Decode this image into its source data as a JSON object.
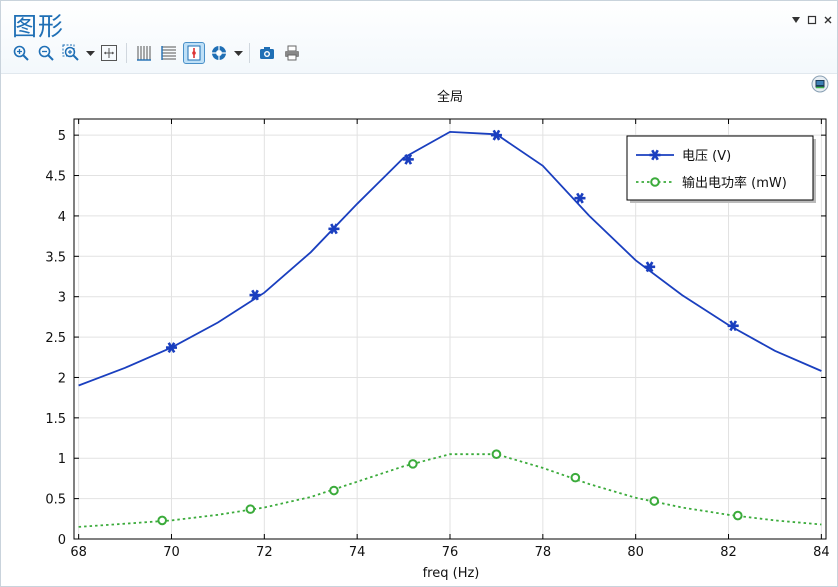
{
  "window": {
    "title": "图形"
  },
  "toolbar": {
    "buttons": [
      {
        "name": "zoom-in-icon"
      },
      {
        "name": "zoom-out-icon"
      },
      {
        "name": "zoom-box-icon"
      },
      {
        "name": "zoom-extents-icon"
      },
      {
        "name": "x-axis-icon"
      },
      {
        "name": "y-axis-icon"
      },
      {
        "name": "point-probe-icon",
        "active": true
      },
      {
        "name": "render-options-icon"
      },
      {
        "name": "camera-icon"
      },
      {
        "name": "print-icon"
      }
    ]
  },
  "colors": {
    "series1": "#1a3fbf",
    "series2": "#3bab3b",
    "accent": "#1f6fb5"
  },
  "chart_data": {
    "type": "line",
    "title": "全局",
    "xlabel": "freq (Hz)",
    "ylabel": "",
    "xlim": [
      67.9,
      84.1
    ],
    "ylim": [
      0,
      5.2
    ],
    "xticks": [
      "68",
      "70",
      "72",
      "74",
      "76",
      "78",
      "80",
      "82",
      "84"
    ],
    "yticks": [
      "0",
      "0.5",
      "1",
      "1.5",
      "2",
      "2.5",
      "3",
      "3.5",
      "4",
      "4.5",
      "5"
    ],
    "grid": true,
    "legend_position": "top-right",
    "series": [
      {
        "name": "电压 (V)",
        "style": "solid",
        "marker": "asterisk",
        "x": [
          68,
          69,
          70,
          71,
          72,
          73,
          74,
          75,
          76,
          77,
          78,
          79,
          80,
          81,
          82,
          83,
          84
        ],
        "y": [
          1.9,
          2.12,
          2.37,
          2.68,
          3.05,
          3.55,
          4.15,
          4.72,
          5.04,
          5.01,
          4.62,
          4.0,
          3.45,
          3.02,
          2.65,
          2.33,
          2.08
        ],
        "marker_x": [
          70.0,
          71.8,
          73.5,
          75.1,
          77.0,
          78.8,
          80.3,
          82.1
        ],
        "marker_y": [
          2.37,
          3.02,
          3.84,
          4.7,
          5.0,
          4.22,
          3.37,
          2.64
        ]
      },
      {
        "name": "输出电功率 (mW)",
        "style": "dotted",
        "marker": "circle",
        "x": [
          68,
          69,
          70,
          71,
          72,
          73,
          74,
          75,
          76,
          77,
          78,
          79,
          80,
          81,
          82,
          83,
          84
        ],
        "y": [
          0.15,
          0.19,
          0.23,
          0.3,
          0.39,
          0.52,
          0.71,
          0.9,
          1.05,
          1.05,
          0.88,
          0.68,
          0.51,
          0.39,
          0.3,
          0.23,
          0.18
        ],
        "marker_x": [
          69.8,
          71.7,
          73.5,
          75.2,
          77.0,
          78.7,
          80.4,
          82.2
        ],
        "marker_y": [
          0.23,
          0.37,
          0.6,
          0.93,
          1.05,
          0.76,
          0.47,
          0.29
        ]
      }
    ]
  }
}
